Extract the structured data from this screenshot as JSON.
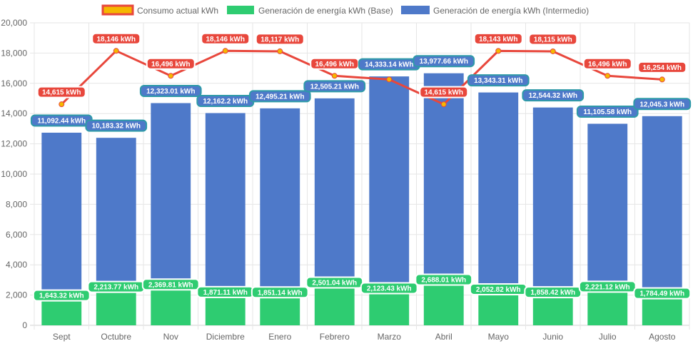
{
  "chart_data": {
    "type": "bar",
    "title": "",
    "xlabel": "",
    "ylabel": "",
    "ylim": [
      0,
      20000
    ],
    "y_ticks": [
      "0",
      "2,000",
      "4,000",
      "6,000",
      "8,000",
      "10,000",
      "12,000",
      "14,000",
      "16,000",
      "18,000",
      "20,000"
    ],
    "y_tick_values": [
      0,
      2000,
      4000,
      6000,
      8000,
      10000,
      12000,
      14000,
      16000,
      18000,
      20000
    ],
    "categories": [
      "Sept",
      "Octubre",
      "Nov",
      "Diciembre",
      "Enero",
      "Febrero",
      "Marzo",
      "Abril",
      "Mayo",
      "Junio",
      "Julio",
      "Agosto"
    ],
    "stacked": true,
    "legend_position": "top",
    "series": [
      {
        "name": "Consumo actual kWh",
        "kind": "line",
        "color": "#e8473c",
        "point_color": "#f5b800",
        "values": [
          14615,
          18146,
          16496,
          18146,
          18117,
          16496,
          16254,
          14615,
          18143,
          18115,
          16496,
          16254
        ],
        "labels": [
          "14,615 kWh",
          "18,146 kWh",
          "16,496 kWh",
          "18,146 kWh",
          "18,117 kWh",
          "16,496 kWh",
          "",
          "14,615 kWh",
          "18,143 kWh",
          "18,115 kWh",
          "16,496 kWh",
          "16,254 kWh"
        ]
      },
      {
        "name": "Generación de energía kWh (Base)",
        "kind": "bar",
        "color": "#2ecc71",
        "values": [
          1643.32,
          2213.77,
          2369.81,
          1871.11,
          1851.14,
          2501.04,
          2123.43,
          2688.01,
          2052.82,
          1858.42,
          2221.12,
          1784.49
        ],
        "labels": [
          "1,643.32 kWh",
          "2,213.77 kWh",
          "2,369.81 kWh",
          "1,871.11 kWh",
          "1,851.14 kWh",
          "2,501.04 kWh",
          "2,123.43 kWh",
          "2,688.01 kWh",
          "2,052.82 kWh",
          "1,858.42 kWh",
          "2,221.12 kWh",
          "1,784.49 kWh"
        ]
      },
      {
        "name": "Generación de energía kWh (Intermedio)",
        "kind": "bar",
        "color": "#4e79c9",
        "values": [
          11092.44,
          10183.32,
          12323.01,
          12162.2,
          12495.21,
          12505.21,
          14333.14,
          13977.66,
          13343.31,
          12544.32,
          11105.58,
          12045.3
        ],
        "labels": [
          "11,092.44 kWh",
          "10,183.32 kWh",
          "12,323.01 kWh",
          "12,162.2 kWh",
          "12,495.21 kWh",
          "12,505.21 kWh",
          "14,333.14 kWh",
          "13,977.66 kWh",
          "13,343.31 kWh",
          "12,544.32 kWh",
          "11,105.58 kWh",
          "12,045.3 kWh"
        ]
      }
    ],
    "label_colors": {
      "line_bg": "#e8473c",
      "line_border": "#ffffff",
      "base_bg": "#2ecc71",
      "base_border": "#ffffff",
      "inter_bg": "#4e79c9",
      "inter_border": "#2e9aa8"
    },
    "legend_swatch_border": "#e8473c",
    "legend_swatch_fill": "#f5b800"
  }
}
